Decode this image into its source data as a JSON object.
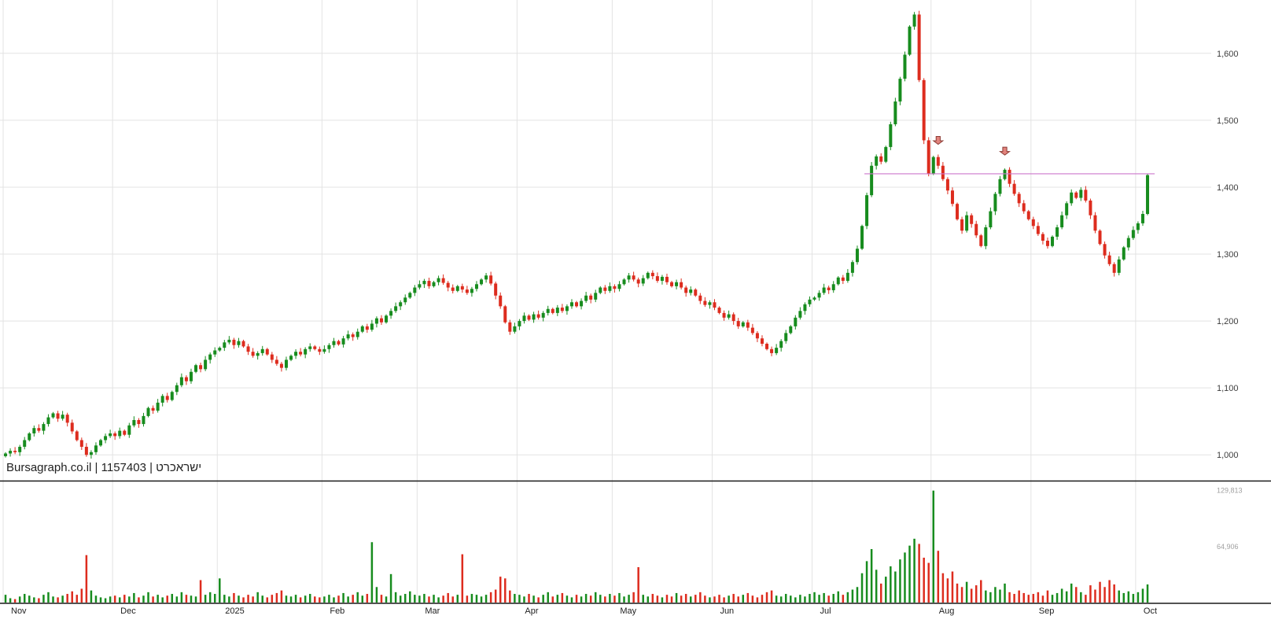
{
  "watermark": "Bursagraph.co.il | 1157403 | ישראכרט",
  "colors": {
    "up": "#178c1e",
    "down": "#dd2c1e",
    "grid": "#e3e3e3",
    "axis_text": "#3d3d3d",
    "month_text": "#222222",
    "volume_axis_text": "#a0a0a0",
    "separator": "#1a1a1a",
    "trend_line": "#cc77cc",
    "arrow_fill": "#e2837d",
    "arrow_stroke": "#8b3a33",
    "background": "#ffffff"
  },
  "chart_data": {
    "type": "candlestick",
    "symbol": "1157403",
    "name": "ישראכרט",
    "source": "Bursagraph.co.il",
    "price_ticks": [
      1000,
      1100,
      1200,
      1300,
      1400,
      1500,
      1600
    ],
    "price_tick_labels": [
      "1,000",
      "1,100",
      "1,200",
      "1,300",
      "1,400",
      "1,500",
      "1,600"
    ],
    "price_range": [
      965,
      1675
    ],
    "volume_ticks": [
      64906,
      129813
    ],
    "volume_tick_labels": [
      "64,906",
      "129,813"
    ],
    "volume_max": 135000,
    "x_labels": [
      {
        "label": "Nov",
        "index": 0
      },
      {
        "label": "Dec",
        "index": 23
      },
      {
        "label": "2025",
        "index": 45
      },
      {
        "label": "Feb",
        "index": 67
      },
      {
        "label": "Mar",
        "index": 87
      },
      {
        "label": "Apr",
        "index": 108
      },
      {
        "label": "May",
        "index": 128
      },
      {
        "label": "Jun",
        "index": 149
      },
      {
        "label": "Jul",
        "index": 170
      },
      {
        "label": "Aug",
        "index": 195
      },
      {
        "label": "Sep",
        "index": 216
      },
      {
        "label": "Oct",
        "index": 238
      }
    ],
    "closes": [
      1002,
      1006,
      1004,
      1012,
      1022,
      1032,
      1040,
      1036,
      1046,
      1056,
      1062,
      1054,
      1060,
      1048,
      1035,
      1022,
      1012,
      1000,
      1004,
      1014,
      1022,
      1028,
      1032,
      1028,
      1036,
      1030,
      1044,
      1052,
      1046,
      1058,
      1070,
      1066,
      1078,
      1088,
      1082,
      1094,
      1104,
      1116,
      1110,
      1124,
      1134,
      1128,
      1142,
      1150,
      1156,
      1160,
      1168,
      1172,
      1164,
      1170,
      1162,
      1154,
      1148,
      1152,
      1158,
      1150,
      1142,
      1136,
      1130,
      1142,
      1148,
      1154,
      1150,
      1158,
      1162,
      1158,
      1154,
      1158,
      1164,
      1170,
      1165,
      1174,
      1180,
      1176,
      1184,
      1192,
      1187,
      1196,
      1204,
      1198,
      1208,
      1215,
      1222,
      1228,
      1235,
      1242,
      1250,
      1255,
      1260,
      1252,
      1258,
      1264,
      1257,
      1250,
      1245,
      1252,
      1247,
      1242,
      1248,
      1255,
      1262,
      1268,
      1256,
      1238,
      1222,
      1198,
      1184,
      1192,
      1200,
      1208,
      1202,
      1210,
      1205,
      1212,
      1218,
      1212,
      1220,
      1215,
      1222,
      1228,
      1222,
      1230,
      1238,
      1232,
      1242,
      1250,
      1245,
      1252,
      1248,
      1255,
      1262,
      1268,
      1262,
      1256,
      1264,
      1272,
      1267,
      1260,
      1266,
      1258,
      1252,
      1258,
      1250,
      1242,
      1247,
      1238,
      1230,
      1224,
      1228,
      1220,
      1212,
      1205,
      1210,
      1200,
      1192,
      1198,
      1190,
      1182,
      1174,
      1166,
      1158,
      1152,
      1160,
      1170,
      1182,
      1192,
      1205,
      1215,
      1225,
      1232,
      1235,
      1242,
      1250,
      1246,
      1255,
      1265,
      1260,
      1272,
      1288,
      1308,
      1342,
      1388,
      1432,
      1446,
      1438,
      1460,
      1494,
      1528,
      1562,
      1598,
      1640,
      1658,
      1560,
      1470,
      1420,
      1445,
      1432,
      1412,
      1395,
      1375,
      1352,
      1335,
      1358,
      1345,
      1328,
      1312,
      1340,
      1364,
      1390,
      1412,
      1426,
      1405,
      1390,
      1376,
      1364,
      1352,
      1342,
      1330,
      1320,
      1312,
      1326,
      1340,
      1358,
      1376,
      1392,
      1384,
      1396,
      1380,
      1358,
      1335,
      1315,
      1298,
      1285,
      1272,
      1292,
      1310,
      1324,
      1336,
      1346,
      1360,
      1418
    ],
    "volumes": [
      9000,
      5000,
      4000,
      7000,
      10000,
      8000,
      6000,
      5000,
      9000,
      12000,
      7000,
      6000,
      8000,
      10000,
      13000,
      9000,
      16000,
      55000,
      14000,
      8000,
      6000,
      5000,
      7000,
      8000,
      6000,
      9000,
      7000,
      11000,
      6000,
      8000,
      12000,
      7000,
      9000,
      6000,
      8000,
      10000,
      7000,
      12000,
      9000,
      8000,
      7000,
      26000,
      9000,
      12000,
      10000,
      28000,
      9000,
      7000,
      11000,
      8000,
      6000,
      9000,
      7000,
      12000,
      8000,
      6000,
      9000,
      11000,
      14000,
      8000,
      7000,
      9000,
      6000,
      8000,
      10000,
      7000,
      6000,
      7000,
      9000,
      6000,
      8000,
      11000,
      7000,
      9000,
      12000,
      8000,
      10000,
      70000,
      18000,
      9000,
      7000,
      33000,
      12000,
      8000,
      10000,
      13000,
      9000,
      8000,
      10000,
      7000,
      9000,
      6000,
      8000,
      11000,
      7000,
      9000,
      56000,
      8000,
      10000,
      9000,
      7000,
      9000,
      12000,
      15000,
      30000,
      28000,
      14000,
      10000,
      9000,
      7000,
      10000,
      8000,
      6000,
      9000,
      12000,
      7000,
      9000,
      11000,
      8000,
      6000,
      9000,
      7000,
      10000,
      8000,
      12000,
      9000,
      7000,
      10000,
      8000,
      11000,
      7000,
      9000,
      12000,
      41000,
      9000,
      7000,
      10000,
      8000,
      6000,
      9000,
      7000,
      11000,
      8000,
      10000,
      7000,
      9000,
      12000,
      8000,
      6000,
      7000,
      9000,
      6000,
      8000,
      10000,
      7000,
      9000,
      11000,
      8000,
      6000,
      9000,
      12000,
      14000,
      8000,
      7000,
      10000,
      8000,
      6000,
      9000,
      7000,
      10000,
      12000,
      9000,
      11000,
      8000,
      10000,
      13000,
      9000,
      12000,
      15000,
      18000,
      34000,
      48000,
      62000,
      38000,
      22000,
      30000,
      42000,
      36000,
      50000,
      58000,
      66000,
      74000,
      68000,
      52000,
      46000,
      129813,
      60000,
      34000,
      28000,
      36000,
      22000,
      18000,
      24000,
      16000,
      20000,
      26000,
      14000,
      12000,
      18000,
      15000,
      22000,
      12000,
      10000,
      14000,
      11000,
      9000,
      10000,
      12000,
      8000,
      14000,
      9000,
      11000,
      16000,
      13000,
      22000,
      18000,
      12000,
      9000,
      20000,
      15000,
      24000,
      18000,
      26000,
      21000,
      14000,
      11000,
      13000,
      10000,
      12000,
      16000,
      21000
    ],
    "annotations": {
      "horizontal_line": {
        "price": 1420,
        "start_index": 181,
        "end_index": 242
      },
      "arrows": [
        {
          "index": 196,
          "price": 1464
        },
        {
          "index": 210,
          "price": 1448
        }
      ]
    }
  }
}
